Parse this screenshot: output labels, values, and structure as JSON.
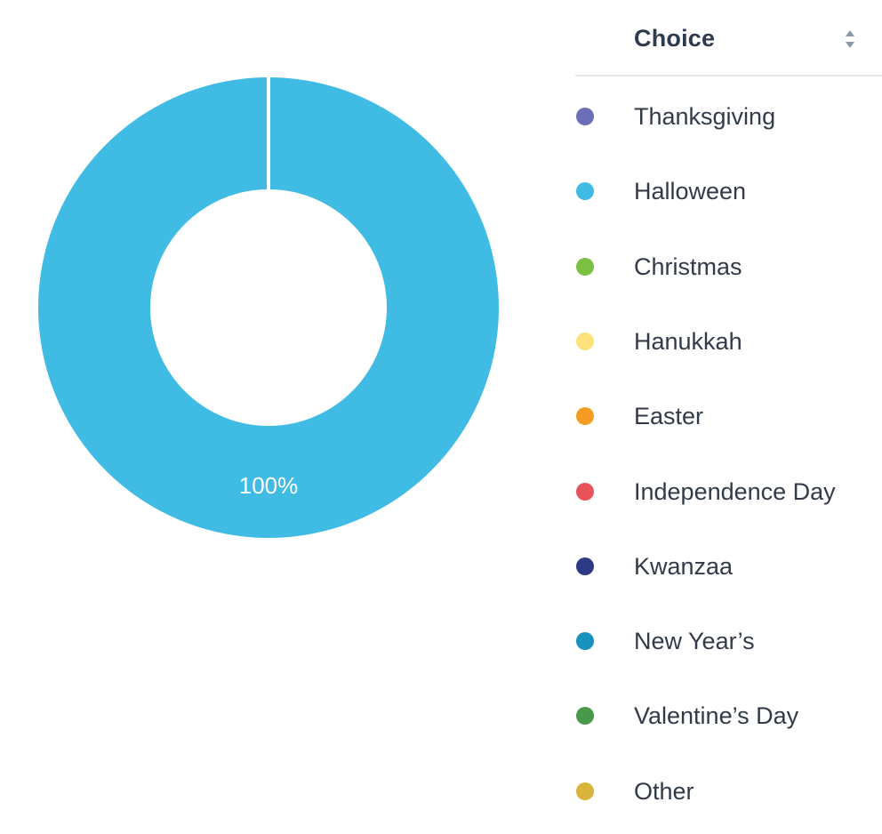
{
  "chart_data": {
    "type": "pie",
    "donut": true,
    "slices": [
      {
        "label": "Thanksgiving",
        "value": 0,
        "color": "#6c6fb7"
      },
      {
        "label": "Halloween",
        "value": 100,
        "color": "#40bbe4"
      },
      {
        "label": "Christmas",
        "value": 0,
        "color": "#7bc043"
      },
      {
        "label": "Hanukkah",
        "value": 0,
        "color": "#fde17d"
      },
      {
        "label": "Easter",
        "value": 0,
        "color": "#f59c25"
      },
      {
        "label": "Independence Day",
        "value": 0,
        "color": "#e8535a"
      },
      {
        "label": "Kwanzaa",
        "value": 0,
        "color": "#2e3a85"
      },
      {
        "label": "New Year’s",
        "value": 0,
        "color": "#1791bd"
      },
      {
        "label": "Valentine’s Day",
        "value": 0,
        "color": "#48994a"
      },
      {
        "label": "Other",
        "value": 0,
        "color": "#d8b43a"
      }
    ],
    "data_labels": [
      "100%"
    ],
    "legend_title": "Choice",
    "legend_placement": "right"
  },
  "legend": {
    "title": "Choice",
    "sort_icon": "sort-updown-icon",
    "sort_icon_color": "#8e9ab1"
  }
}
